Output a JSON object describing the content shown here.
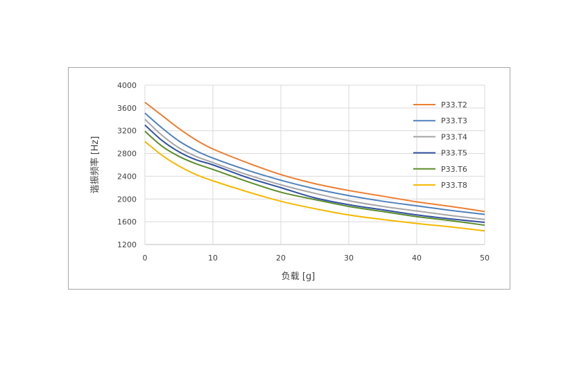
{
  "chart_data": {
    "type": "line",
    "xlabel": "负载 [g]",
    "ylabel": "谐振频率 [Hz]",
    "xlim": [
      0,
      50
    ],
    "ylim": [
      1200,
      4000
    ],
    "x_ticks": [
      0,
      10,
      20,
      30,
      40,
      50
    ],
    "y_ticks": [
      1200,
      1600,
      2000,
      2400,
      2800,
      3200,
      3600,
      4000
    ],
    "grid": true,
    "legend_position": "right",
    "x": [
      0,
      2.5,
      5,
      7.5,
      10,
      15,
      20,
      25,
      30,
      35,
      40,
      45,
      50
    ],
    "series": [
      {
        "name": "P33.T2",
        "color": "#ED7D31",
        "values": [
          3700,
          3470,
          3240,
          3040,
          2880,
          2640,
          2430,
          2270,
          2150,
          2050,
          1950,
          1870,
          1780
        ]
      },
      {
        "name": "P33.T3",
        "color": "#4F81BD",
        "values": [
          3510,
          3250,
          3020,
          2850,
          2720,
          2510,
          2330,
          2180,
          2060,
          1960,
          1880,
          1800,
          1730
        ]
      },
      {
        "name": "P33.T4",
        "color": "#A5A5A5",
        "values": [
          3400,
          3120,
          2900,
          2750,
          2640,
          2430,
          2250,
          2100,
          1970,
          1870,
          1790,
          1710,
          1640
        ]
      },
      {
        "name": "P33.T5",
        "color": "#2F4FA0",
        "values": [
          3300,
          3030,
          2830,
          2690,
          2600,
          2380,
          2200,
          2020,
          1900,
          1810,
          1720,
          1650,
          1590
        ]
      },
      {
        "name": "P33.T6",
        "color": "#5B8C2A",
        "values": [
          3190,
          2930,
          2750,
          2620,
          2520,
          2310,
          2120,
          1990,
          1870,
          1780,
          1690,
          1620,
          1540
        ]
      },
      {
        "name": "P33.T8",
        "color": "#F5B800",
        "values": [
          3010,
          2770,
          2580,
          2430,
          2320,
          2130,
          1960,
          1830,
          1720,
          1640,
          1570,
          1510,
          1440
        ]
      }
    ]
  }
}
